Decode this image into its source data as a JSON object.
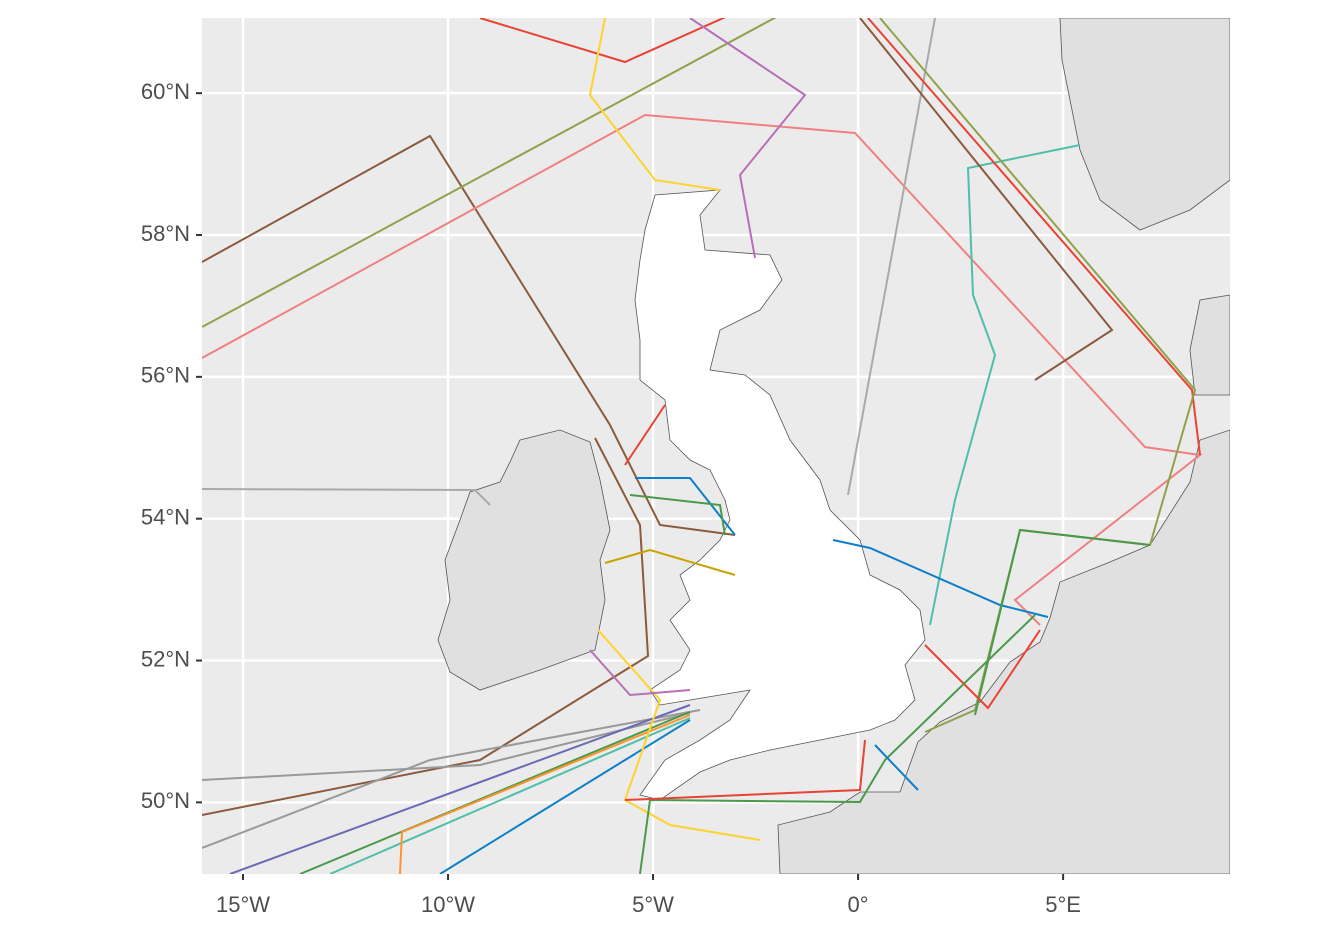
{
  "map": {
    "xlim": [
      -16,
      9.07
    ],
    "ylim": [
      48.99,
      61.06
    ],
    "xticks": [
      {
        "value": -15,
        "label": "15°W"
      },
      {
        "value": -10,
        "label": "10°W"
      },
      {
        "value": -5,
        "label": "5°W"
      },
      {
        "value": 0,
        "label": "0°"
      },
      {
        "value": 5,
        "label": "5°E"
      }
    ],
    "yticks": [
      {
        "value": 50,
        "label": "50°N"
      },
      {
        "value": 52,
        "label": "52°N"
      },
      {
        "value": 54,
        "label": "54°N"
      },
      {
        "value": 56,
        "label": "56°N"
      },
      {
        "value": 58,
        "label": "58°N"
      },
      {
        "value": 60,
        "label": "60°N"
      }
    ],
    "grid": true
  }
}
